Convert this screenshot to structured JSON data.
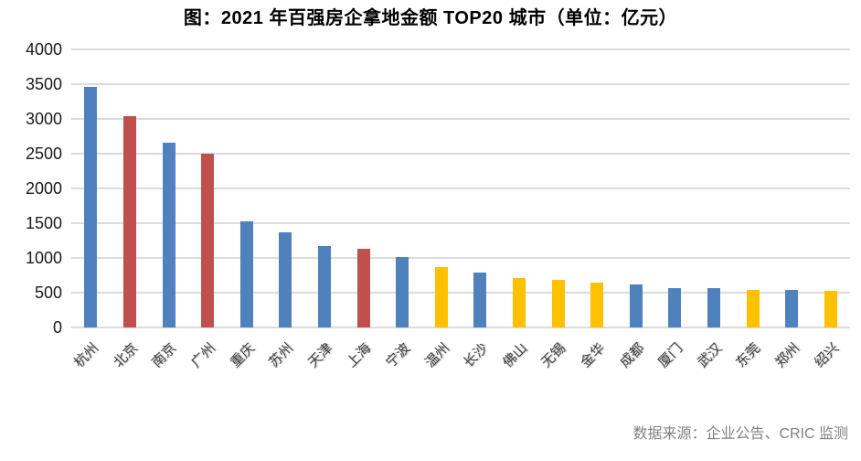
{
  "title": "图：2021 年百强房企拿地金额 TOP20 城市（单位：亿元）",
  "source": "数据来源：企业公告、CRIC 监测",
  "colors": {
    "blue": "#4F81BD",
    "red": "#C0504D",
    "yellow": "#FFC000",
    "gridline": "#DCDCDC",
    "title_text": "#000000",
    "axis_text": "#1A1A1A",
    "source_text": "#808080",
    "background": "#FFFFFF"
  },
  "chart_data": {
    "type": "bar",
    "title": "图：2021 年百强房企拿地金额 TOP20 城市（单位：亿元）",
    "unit": "亿元",
    "xlabel": "",
    "ylabel": "",
    "ylim": [
      0,
      4000
    ],
    "y_ticks": [
      0,
      500,
      1000,
      1500,
      2000,
      2500,
      3000,
      3500,
      4000
    ],
    "grid": "horizontal",
    "legend_position": "none",
    "categories": [
      "杭州",
      "北京",
      "南京",
      "广州",
      "重庆",
      "苏州",
      "天津",
      "上海",
      "宁波",
      "温州",
      "长沙",
      "佛山",
      "无锡",
      "金华",
      "成都",
      "厦门",
      "武汉",
      "东莞",
      "郑州",
      "绍兴"
    ],
    "values": [
      3460,
      3035,
      2660,
      2500,
      1530,
      1375,
      1170,
      1135,
      1015,
      875,
      790,
      705,
      690,
      650,
      620,
      570,
      565,
      540,
      535,
      520
    ],
    "bar_color_keys": [
      "blue",
      "red",
      "blue",
      "red",
      "blue",
      "blue",
      "blue",
      "red",
      "blue",
      "yellow",
      "blue",
      "yellow",
      "yellow",
      "yellow",
      "blue",
      "blue",
      "blue",
      "yellow",
      "blue",
      "yellow"
    ]
  }
}
